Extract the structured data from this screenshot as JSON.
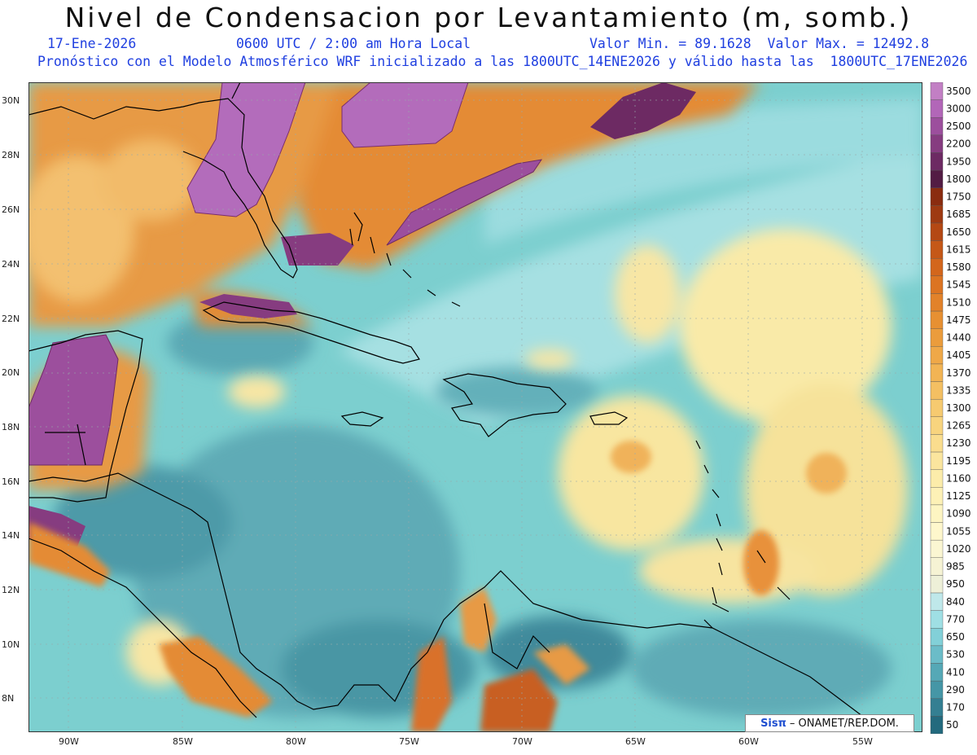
{
  "header": {
    "title": "Nivel de Condensacion por Levantamiento (m, somb.)",
    "date": "17-Ene-2026",
    "time": "0600 UTC / 2:00 am Hora Local",
    "minmax": "Valor Min. = 89.1628  Valor Max. = 12492.8",
    "model_line": "Pronóstico con el Modelo Atmosférico WRF inicializado a las 1800UTC_14ENE2026 y válido hasta las  1800UTC_17ENE2026"
  },
  "axes": {
    "lat_labels": [
      "30N",
      "28N",
      "26N",
      "24N",
      "22N",
      "20N",
      "18N",
      "16N",
      "14N",
      "12N",
      "10N",
      "8N"
    ],
    "lon_labels": [
      "90W",
      "85W",
      "80W",
      "75W",
      "70W",
      "65W",
      "60W",
      "55W"
    ]
  },
  "legend": {
    "levels": [
      "3500",
      "3000",
      "2500",
      "2200",
      "1950",
      "1800",
      "1750",
      "1685",
      "1650",
      "1615",
      "1580",
      "1545",
      "1510",
      "1475",
      "1440",
      "1405",
      "1370",
      "1335",
      "1300",
      "1265",
      "1230",
      "1195",
      "1160",
      "1125",
      "1090",
      "1055",
      "1020",
      "985",
      "950",
      "840",
      "770",
      "650",
      "530",
      "410",
      "290",
      "170",
      "50"
    ],
    "colors": [
      "#c27fc4",
      "#b266b8",
      "#9c4f9d",
      "#863c80",
      "#6d2a63",
      "#531c44",
      "#8a2c10",
      "#9e3a12",
      "#b44814",
      "#c55818",
      "#d3661c",
      "#dc7422",
      "#e2822a",
      "#e79032",
      "#eb9c3c",
      "#efa848",
      "#f2b454",
      "#f4bf62",
      "#f6ca70",
      "#f8d47e",
      "#fadd8e",
      "#fbe59e",
      "#fcecaa",
      "#fdf1b6",
      "#fdf5c2",
      "#fef7cc",
      "#fbf6d2",
      "#f6f3d4",
      "#eef0d8",
      "#bfe8ea",
      "#9fdfe4",
      "#82d0d8",
      "#6bbcc8",
      "#55a8b6",
      "#4596a6",
      "#347f92",
      "#236a7e"
    ]
  },
  "credit": {
    "logo": "Sisπ",
    "text": "– ONAMET/REP.DOM."
  },
  "palette": {
    "ocean_base": "#7ccfcf",
    "deep_teal": "#3e8f9f",
    "land_line": "#000000",
    "text_blue": "#1f3fe0"
  }
}
